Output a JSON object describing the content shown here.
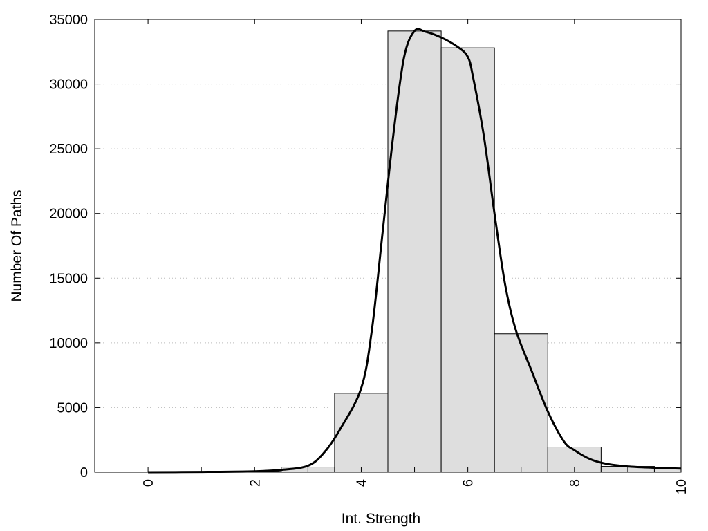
{
  "chart_data": {
    "type": "bar",
    "title": "",
    "xlabel": "Int. Strength",
    "ylabel": "Number Of Paths",
    "xlim": [
      -1,
      10
    ],
    "ylim": [
      0,
      35000
    ],
    "x_ticks": [
      0,
      2,
      4,
      6,
      8,
      10
    ],
    "x_tick_labels": [
      "0",
      "2",
      "4",
      "6",
      "8",
      "10"
    ],
    "y_ticks": [
      0,
      5000,
      10000,
      15000,
      20000,
      25000,
      30000,
      35000
    ],
    "y_tick_labels": [
      "0",
      "5000",
      "10000",
      "15000",
      "20000",
      "25000",
      "30000",
      "35000"
    ],
    "grid": "horizontal dotted",
    "legend": "none",
    "bar_width": 1,
    "categories": [
      0,
      1,
      2,
      3,
      4,
      5,
      6,
      7,
      8,
      9,
      10
    ],
    "values": [
      10,
      20,
      50,
      400,
      6100,
      34100,
      32800,
      10700,
      1950,
      450,
      300
    ],
    "curve": {
      "type": "line",
      "x": [
        0,
        1,
        2,
        2.5,
        3,
        3.3,
        3.6,
        4,
        4.2,
        4.4,
        4.6,
        4.8,
        5,
        5.2,
        5.5,
        5.8,
        6,
        6.1,
        6.3,
        6.5,
        6.7,
        6.9,
        7.2,
        7.5,
        7.8,
        8,
        8.3,
        8.6,
        9,
        9.5,
        10
      ],
      "y": [
        0,
        20,
        70,
        180,
        500,
        1500,
        3300,
        6500,
        11000,
        18500,
        26000,
        32000,
        34100,
        34050,
        33600,
        32900,
        32100,
        30500,
        26000,
        20000,
        14500,
        11000,
        7800,
        4700,
        2400,
        1700,
        1000,
        650,
        450,
        350,
        280
      ],
      "color": "#000000"
    },
    "colors": {
      "bar_fill": "#dedede",
      "bar_stroke": "#000000",
      "grid": "#bbbbbb"
    }
  }
}
